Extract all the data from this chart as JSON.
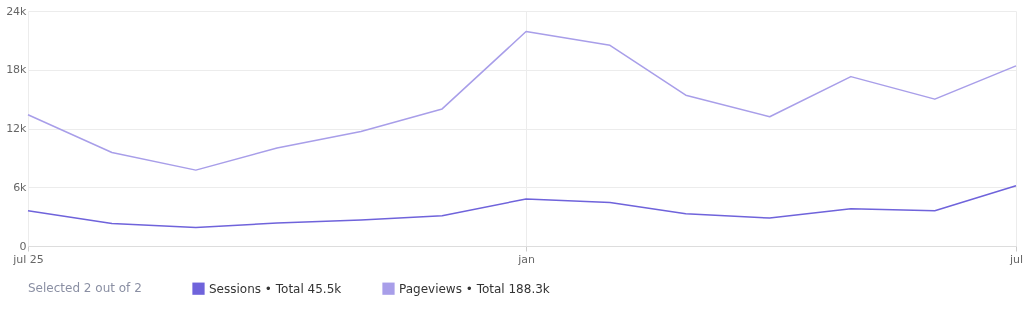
{
  "chart_data": {
    "type": "line",
    "x": [
      "2025-07",
      "2025-08",
      "2025-09",
      "2025-10",
      "2025-11",
      "2025-12",
      "2026-01",
      "2026-02",
      "2026-03",
      "2026-04",
      "2026-05",
      "2026-06",
      "2026-07"
    ],
    "series": [
      {
        "name": "Sessions • Total 45.5k",
        "color": "#6f63db",
        "values": [
          3600,
          2300,
          1900,
          2350,
          2650,
          3100,
          4800,
          4450,
          3300,
          2850,
          3800,
          3600,
          6150
        ]
      },
      {
        "name": "Pageviews • Total 188.3k",
        "color": "#a89ee9",
        "values": [
          13400,
          9550,
          7750,
          10000,
          11700,
          14000,
          21900,
          20500,
          15400,
          13200,
          17300,
          15000,
          18400
        ]
      }
    ],
    "xlim": [
      "2025-07",
      "2026-07"
    ],
    "xticks": [
      {
        "value": "2025-07",
        "label": "jul 25"
      },
      {
        "value": "2026-01",
        "label": "jan"
      },
      {
        "value": "2026-07",
        "label": "jul"
      }
    ],
    "ylim": [
      0,
      24000
    ],
    "yticks": [
      {
        "value": 0,
        "label": "0"
      },
      {
        "value": 6000,
        "label": "6k"
      },
      {
        "value": 12000,
        "label": "12k"
      },
      {
        "value": 18000,
        "label": "18k"
      },
      {
        "value": 24000,
        "label": "24k"
      }
    ],
    "legend_title": "Selected 2 out of 2",
    "legend": "bottom",
    "grid": true,
    "marker": "none",
    "line_style": "solid"
  }
}
